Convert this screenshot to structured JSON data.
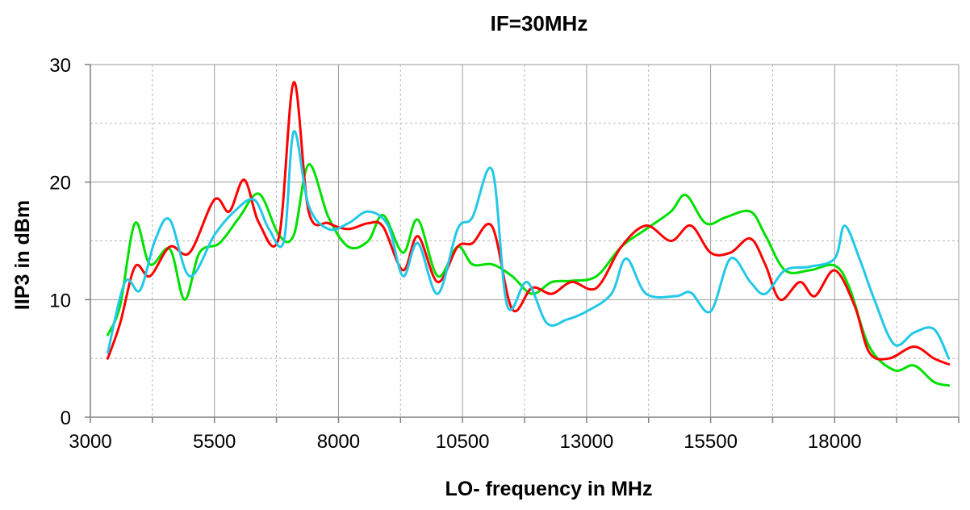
{
  "chart_data": {
    "type": "line",
    "title": "IF=30MHz",
    "xlabel": "LO- frequency in MHz",
    "ylabel": "IIP3 in dBm",
    "xlim": [
      3000,
      20500
    ],
    "ylim": [
      0,
      30
    ],
    "xticks": [
      3000,
      5500,
      8000,
      10500,
      13000,
      15500,
      18000
    ],
    "xtick_labels": [
      "3000",
      "5500",
      "8000",
      "10500",
      "13000",
      "15500",
      "18000"
    ],
    "yticks": [
      0,
      10,
      20,
      30
    ],
    "ytick_labels": [
      "0",
      "10",
      "20",
      "30"
    ],
    "grid": true,
    "legend": "none",
    "series": [
      {
        "color": "#00e000",
        "x": [
          3350,
          3600,
          3900,
          4200,
          4600,
          4900,
          5200,
          5600,
          6000,
          6400,
          6800,
          7100,
          7400,
          7800,
          8200,
          8600,
          8900,
          9300,
          9600,
          10000,
          10400,
          10700,
          11100,
          11500,
          11900,
          12300,
          12700,
          13200,
          13700,
          14200,
          14700,
          15000,
          15400,
          15800,
          16300,
          16600,
          17000,
          17500,
          18000,
          18300,
          18700,
          19200,
          19600,
          20000,
          20300
        ],
        "values": [
          7.0,
          9.5,
          16.5,
          13.0,
          14.3,
          10.0,
          14.0,
          14.8,
          17.0,
          19.0,
          15.5,
          15.5,
          21.5,
          17.0,
          14.5,
          15.0,
          17.2,
          14.0,
          16.8,
          12.0,
          14.5,
          13.0,
          13.0,
          12.0,
          10.5,
          11.5,
          11.6,
          12.0,
          14.5,
          16.0,
          17.5,
          18.9,
          16.5,
          17.0,
          17.5,
          15.5,
          12.5,
          12.5,
          12.9,
          11.0,
          6.0,
          4.0,
          4.4,
          3.0,
          2.7
        ]
      },
      {
        "color": "#ff0000",
        "x": [
          3350,
          3600,
          3900,
          4200,
          4600,
          5000,
          5500,
          5800,
          6100,
          6400,
          6800,
          7100,
          7400,
          7800,
          8200,
          8600,
          8900,
          9300,
          9600,
          10000,
          10400,
          10700,
          11100,
          11500,
          11900,
          12300,
          12700,
          13200,
          13700,
          14200,
          14700,
          15100,
          15500,
          15900,
          16300,
          16600,
          16900,
          17300,
          17600,
          18000,
          18400,
          18700,
          19100,
          19600,
          20000,
          20300
        ],
        "values": [
          5.0,
          8.0,
          12.8,
          12.0,
          14.5,
          14.0,
          18.5,
          17.5,
          20.2,
          16.5,
          15.3,
          28.5,
          17.5,
          16.5,
          16.0,
          16.5,
          16.2,
          12.5,
          15.4,
          11.5,
          14.5,
          14.8,
          16.2,
          9.2,
          11.0,
          10.5,
          11.5,
          11.0,
          14.5,
          16.3,
          15.0,
          16.3,
          14.0,
          14.0,
          15.2,
          13.0,
          10.0,
          11.5,
          10.3,
          12.5,
          9.5,
          5.5,
          5.0,
          6.0,
          5.0,
          4.5
        ]
      },
      {
        "color": "#22c8e8",
        "x": [
          3350,
          3700,
          4000,
          4300,
          4600,
          5000,
          5500,
          5900,
          6300,
          6600,
          6900,
          7100,
          7400,
          7800,
          8200,
          8600,
          9000,
          9300,
          9600,
          10000,
          10400,
          10700,
          11100,
          11400,
          11800,
          12200,
          12600,
          13000,
          13500,
          13800,
          14200,
          14800,
          15100,
          15500,
          15900,
          16300,
          16600,
          17000,
          17500,
          18000,
          18200,
          18500,
          18800,
          19200,
          19600,
          20000,
          20300
        ],
        "values": [
          5.5,
          11.5,
          10.8,
          15.0,
          16.8,
          12.0,
          15.5,
          17.5,
          18.5,
          16.0,
          15.0,
          24.3,
          18.0,
          16.0,
          16.5,
          17.5,
          16.3,
          12.0,
          14.8,
          10.5,
          16.0,
          17.0,
          21.0,
          9.5,
          11.5,
          8.0,
          8.3,
          9.0,
          10.5,
          13.5,
          10.5,
          10.3,
          10.6,
          9.0,
          13.5,
          11.5,
          10.5,
          12.5,
          12.8,
          13.5,
          16.3,
          13.5,
          10.0,
          6.2,
          7.2,
          7.5,
          5.0
        ]
      }
    ]
  }
}
